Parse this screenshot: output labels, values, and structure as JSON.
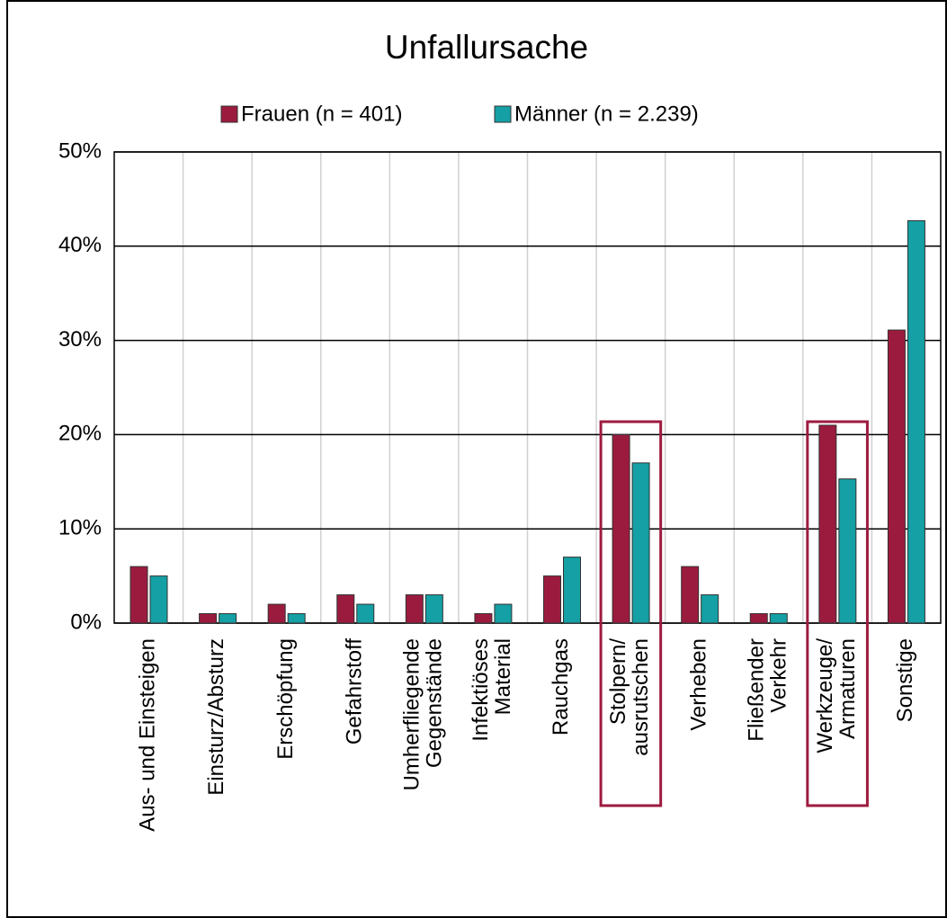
{
  "chart_data": {
    "type": "bar",
    "title": "Unfallursache",
    "categories": [
      [
        "Aus- und Einsteigen"
      ],
      [
        "Einsturz/Absturz"
      ],
      [
        "Erschöpfung"
      ],
      [
        "Gefahrstoff"
      ],
      [
        "Umherfliegende",
        "Gegenstände"
      ],
      [
        "Infektiöses",
        "Material"
      ],
      [
        "Rauchgas"
      ],
      [
        "Stolpern/",
        "ausrutschen"
      ],
      [
        "Verheben"
      ],
      [
        "Fließender",
        "Verkehr"
      ],
      [
        "Werkzeuge/",
        "Armaturen"
      ],
      [
        "Sonstige"
      ]
    ],
    "series": [
      {
        "name": "Frauen (n = 401)",
        "color": "#9b1b3e",
        "values": [
          6,
          1,
          2,
          3,
          3,
          1,
          5,
          20,
          6,
          1,
          21,
          31.1
        ]
      },
      {
        "name": "Männer (n = 2.239)",
        "color": "#14a0a4",
        "values": [
          5,
          1,
          1,
          2,
          3,
          2,
          7,
          17,
          3,
          1,
          15.3,
          42.7
        ]
      }
    ],
    "ylim": [
      0,
      50
    ],
    "yticks": [
      {
        "value": 0,
        "label": "0%"
      },
      {
        "value": 10,
        "label": "10%"
      },
      {
        "value": 20,
        "label": "20%"
      },
      {
        "value": 30,
        "label": "30%"
      },
      {
        "value": 40,
        "label": "40%"
      },
      {
        "value": 50,
        "label": "50%"
      }
    ],
    "grid": true,
    "legend": "top"
  }
}
